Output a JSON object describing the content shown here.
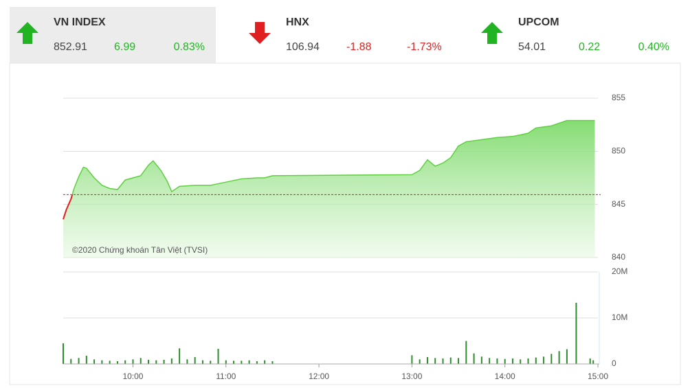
{
  "indices": [
    {
      "name": "VN INDEX",
      "price": "852.91",
      "change": "6.99",
      "percent": "0.83%",
      "color": "#22b322"
    },
    {
      "name": "HNX",
      "price": "106.94",
      "change": "-1.88",
      "percent": "-1.73%",
      "color": "#e02020"
    },
    {
      "name": "UPCOM",
      "price": "54.01",
      "change": "0.22",
      "percent": "0.40%",
      "color": "#22b322"
    }
  ],
  "chart_data": [
    {
      "type": "area",
      "watermark": "©2020 Chứng khoán Tân Việt (TVSI)",
      "x": [
        "09:15",
        "09:17",
        "09:20",
        "09:22",
        "09:25",
        "09:28",
        "09:30",
        "09:35",
        "09:40",
        "09:45",
        "09:50",
        "09:55",
        "10:05",
        "10:10",
        "10:13",
        "10:18",
        "10:22",
        "10:25",
        "10:30",
        "10:40",
        "10:50",
        "11:00",
        "11:10",
        "11:20",
        "11:25",
        "11:30",
        "13:00",
        "13:05",
        "13:10",
        "13:15",
        "13:20",
        "13:25",
        "13:30",
        "13:35",
        "13:45",
        "13:55",
        "14:05",
        "14:15",
        "14:20",
        "14:30",
        "14:40",
        "14:58"
      ],
      "values": [
        843.6,
        844.5,
        845.5,
        846.5,
        847.6,
        848.5,
        848.4,
        847.5,
        846.8,
        846.5,
        846.4,
        847.3,
        847.7,
        848.7,
        849.1,
        848.2,
        847.2,
        846.2,
        846.7,
        846.8,
        846.8,
        847.1,
        847.4,
        847.5,
        847.5,
        847.7,
        847.8,
        848.2,
        849.2,
        848.6,
        848.9,
        849.4,
        850.5,
        850.9,
        851.1,
        851.3,
        851.4,
        851.7,
        852.2,
        852.4,
        852.9,
        852.9
      ],
      "reference": 845.92,
      "color": "#5fcf3f",
      "down_color": "#e02020",
      "reference_color": "#cc2222",
      "xlim": [
        "09:15",
        "15:00"
      ],
      "ylim": [
        840,
        855
      ],
      "yticks": [
        840,
        845,
        850,
        855
      ],
      "grid": true
    },
    {
      "type": "bar",
      "x": [
        "09:15",
        "09:20",
        "09:25",
        "09:30",
        "09:35",
        "09:40",
        "09:45",
        "09:50",
        "09:55",
        "10:00",
        "10:05",
        "10:10",
        "10:15",
        "10:20",
        "10:25",
        "10:30",
        "10:35",
        "10:40",
        "10:45",
        "10:50",
        "10:55",
        "11:00",
        "11:05",
        "11:10",
        "11:15",
        "11:20",
        "11:25",
        "11:30",
        "13:00",
        "13:05",
        "13:10",
        "13:15",
        "13:20",
        "13:25",
        "13:30",
        "13:35",
        "13:40",
        "13:45",
        "13:50",
        "13:55",
        "14:00",
        "14:05",
        "14:10",
        "14:15",
        "14:20",
        "14:25",
        "14:30",
        "14:35",
        "14:40",
        "14:46",
        "14:55",
        "14:57"
      ],
      "values": [
        4500000,
        1100000,
        1300000,
        1800000,
        1000000,
        800000,
        700000,
        600000,
        800000,
        1000000,
        1300000,
        900000,
        800000,
        900000,
        1200000,
        3400000,
        1000000,
        1500000,
        800000,
        700000,
        3300000,
        800000,
        700000,
        700000,
        800000,
        600000,
        800000,
        600000,
        1900000,
        1000000,
        1500000,
        1300000,
        1200000,
        1400000,
        1300000,
        5000000,
        2300000,
        1600000,
        1300000,
        1200000,
        1100000,
        1200000,
        1000000,
        1200000,
        1400000,
        1600000,
        2200000,
        2800000,
        3200000,
        13300000,
        1200000,
        800000
      ],
      "color": "#2e8b2e",
      "xlim": [
        "09:15",
        "15:00"
      ],
      "xticks": [
        "10:00",
        "11:00",
        "12:00",
        "13:00",
        "14:00",
        "15:00"
      ],
      "ylim": [
        0,
        20000000
      ],
      "yticks": [
        0,
        {
          "value": 10000000,
          "label": "10M"
        },
        {
          "value": 20000000,
          "label": "20M"
        }
      ],
      "grid": true
    }
  ]
}
